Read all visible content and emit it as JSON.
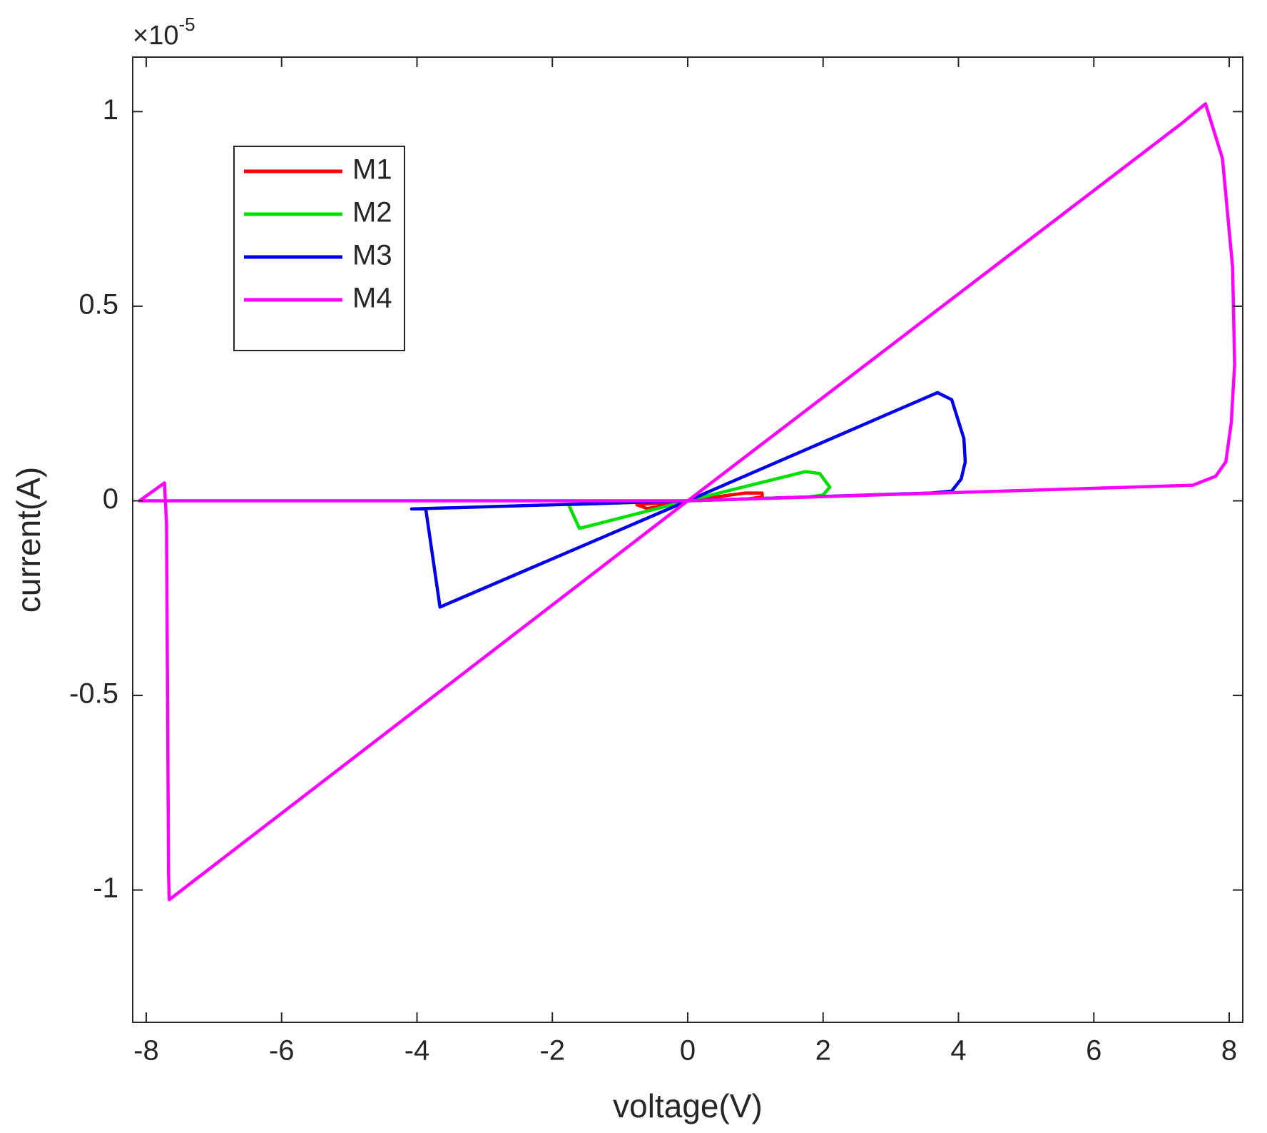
{
  "chart_data": {
    "type": "line",
    "x_label": "voltage(V)",
    "y_label": "current(A)",
    "y_multiplier": {
      "base": "×10",
      "exponent": "-5"
    },
    "xlim": [
      -8.2,
      8.2
    ],
    "xticks": [
      -8,
      -6,
      -4,
      -2,
      0,
      2,
      4,
      6,
      8
    ],
    "ylim": [
      -1.34,
      1.14
    ],
    "yticks": [
      -1,
      -0.5,
      0,
      0.5,
      1
    ],
    "legend": "upper left",
    "series": [
      {
        "name": "M1",
        "color": "#ff0000",
        "x": [
          0,
          0.85,
          1.1,
          1.1,
          0.9,
          0,
          -0.75,
          -0.6,
          0
        ],
        "values": [
          0,
          0.02,
          0.02,
          0.01,
          0.005,
          0,
          -0.01,
          -0.02,
          0
        ]
      },
      {
        "name": "M2",
        "color": "#00e000",
        "x": [
          0,
          1.74,
          1.95,
          2.1,
          2.0,
          1.8,
          0,
          -1.76,
          -1.6,
          0
        ],
        "values": [
          0,
          0.075,
          0.07,
          0.035,
          0.015,
          0.01,
          0,
          -0.01,
          -0.071,
          0
        ]
      },
      {
        "name": "M3",
        "color": "#0000ee",
        "x": [
          0,
          3.69,
          3.9,
          4.08,
          4.1,
          4.04,
          3.9,
          3.6,
          0,
          -4.08,
          -3.87,
          -3.66,
          0
        ],
        "values": [
          0,
          0.278,
          0.26,
          0.16,
          0.1,
          0.056,
          0.025,
          0.02,
          0,
          -0.021,
          -0.021,
          -0.273,
          0
        ]
      },
      {
        "name": "M4",
        "color": "#ff00ff",
        "x": [
          0,
          7.3,
          7.65,
          7.9,
          8.05,
          8.08,
          8.03,
          7.95,
          7.8,
          7.46,
          0,
          -8.1,
          -7.73,
          -7.7,
          -7.67,
          -7.66,
          0
        ],
        "values": [
          0,
          0.97,
          1.02,
          0.88,
          0.6,
          0.35,
          0.2,
          0.1,
          0.063,
          0.04,
          0,
          0,
          0.046,
          -0.06,
          -0.96,
          -1.025,
          0
        ]
      }
    ]
  }
}
